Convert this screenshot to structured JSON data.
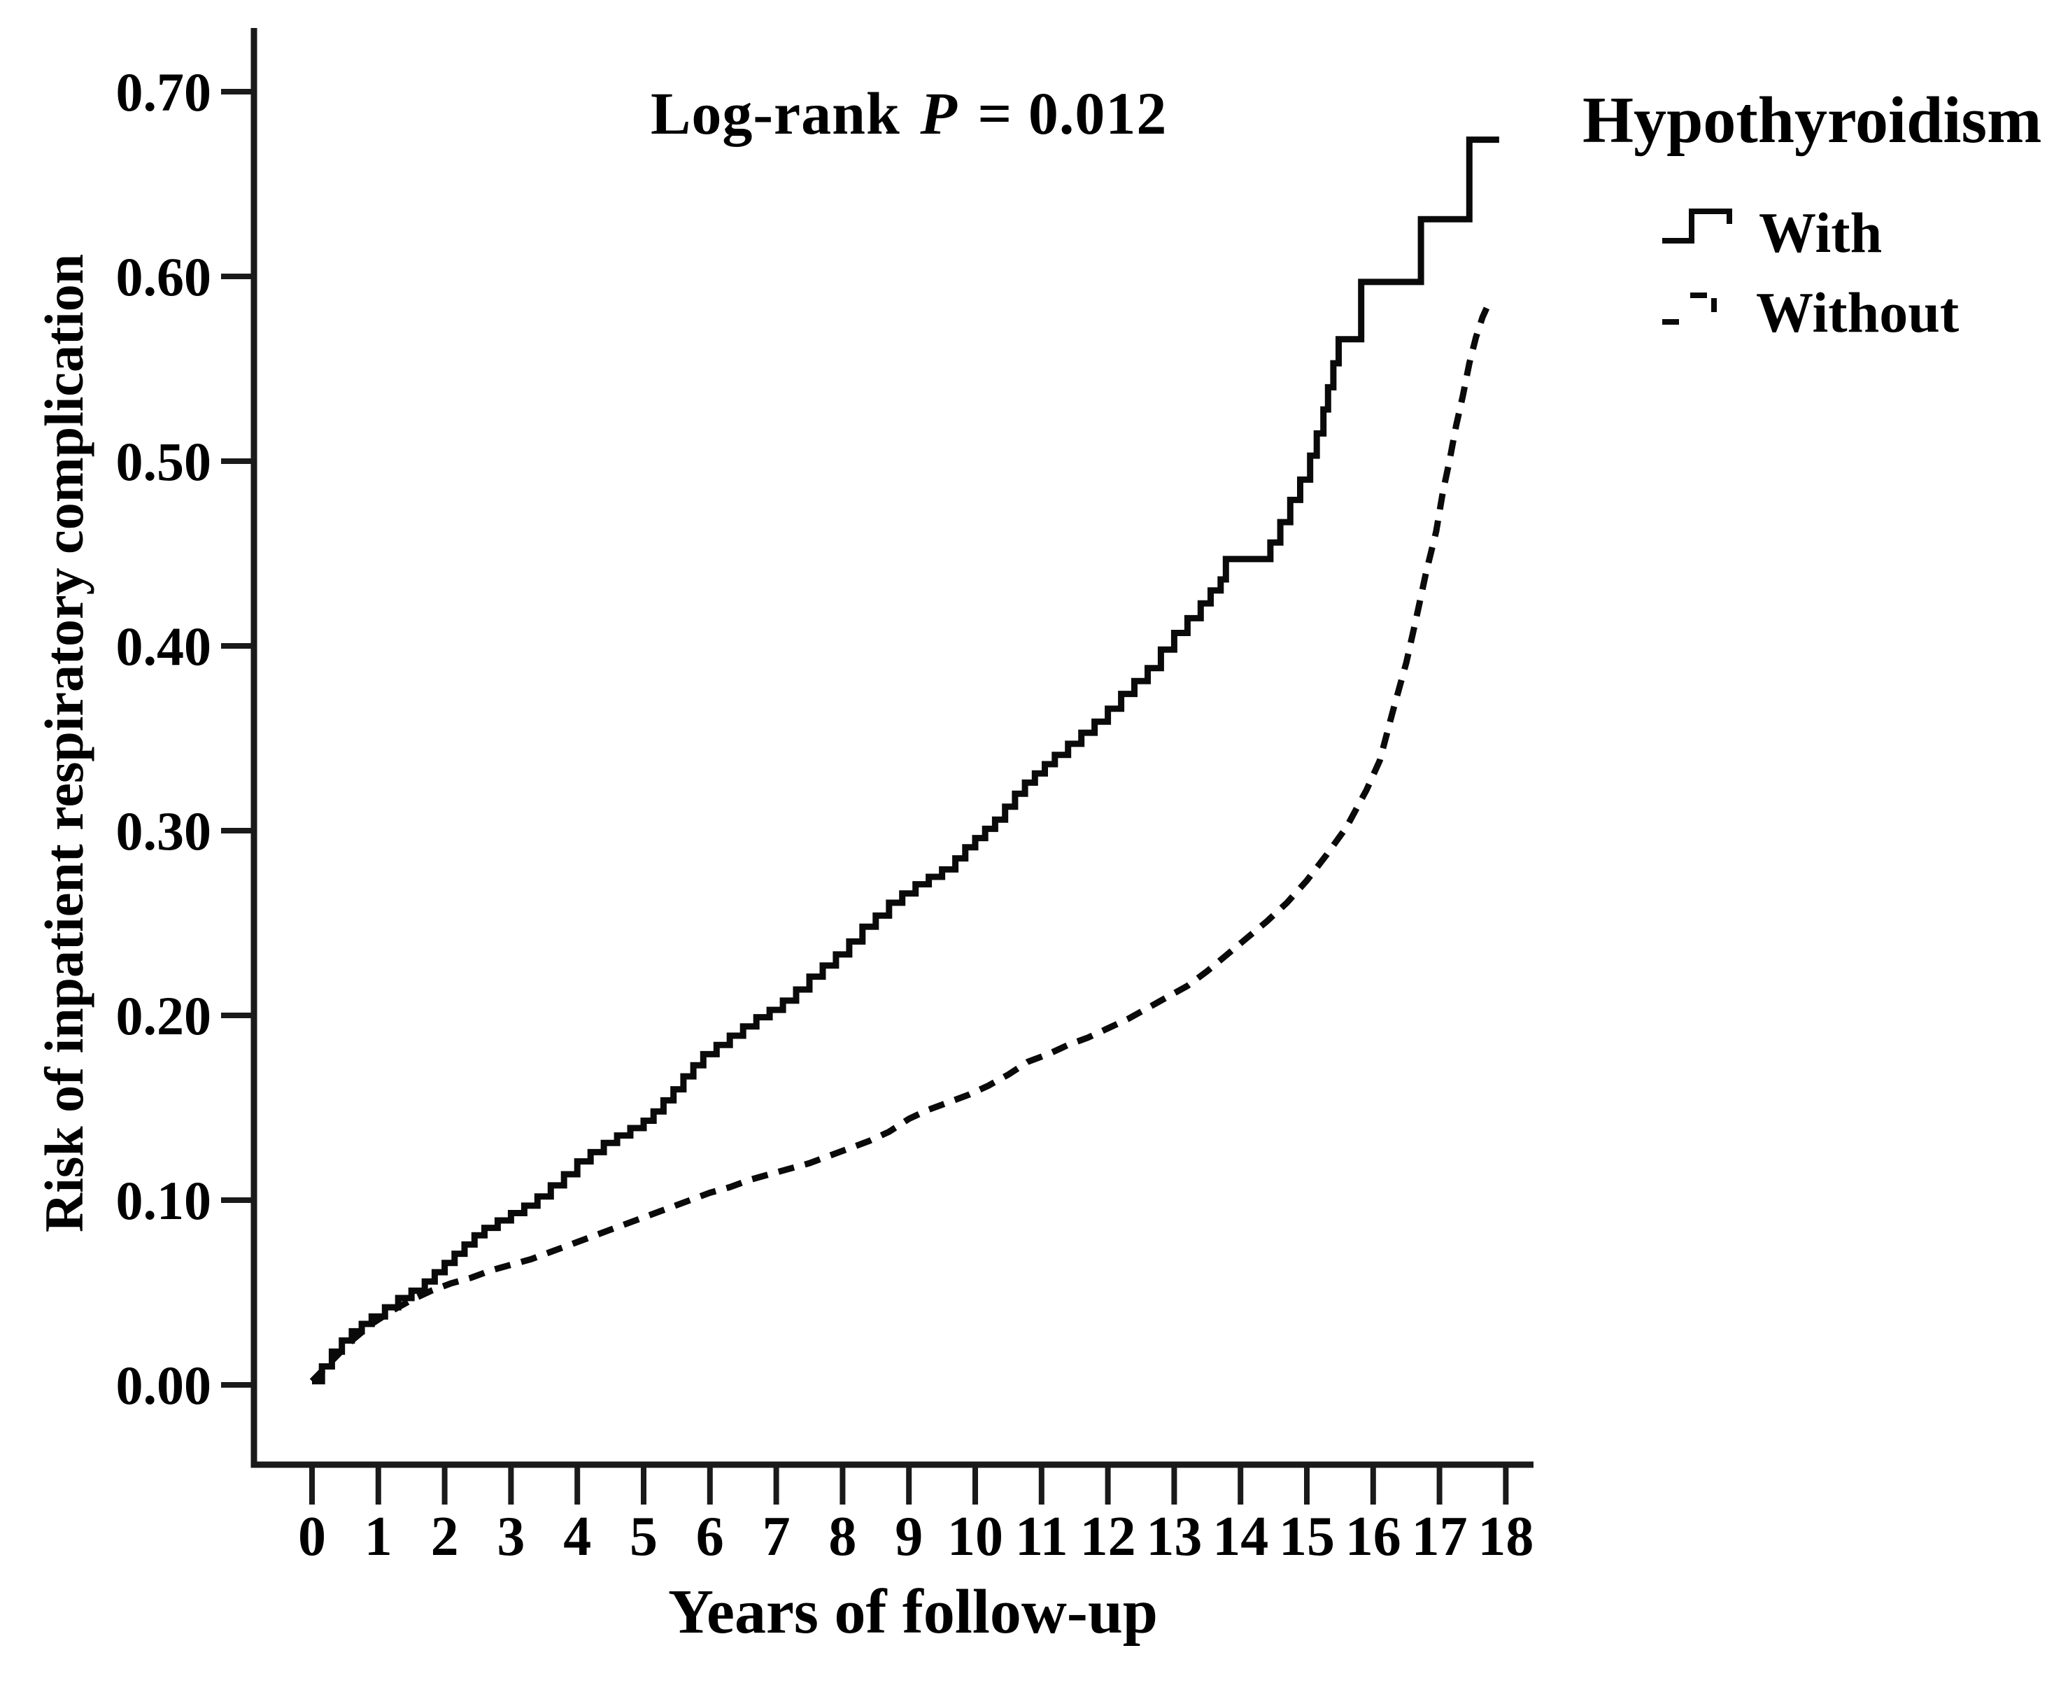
{
  "title": {
    "prefix": "Log-rank",
    "stat": "P",
    "suffix": "= 0.012"
  },
  "axes": {
    "x_label": "Years of follow-up",
    "y_label": "Risk of inpatient respiratory complication"
  },
  "legend": {
    "title": "Hypothyroidism",
    "items": [
      {
        "label": "With",
        "line": "solid"
      },
      {
        "label": "Without",
        "line": "dashed"
      }
    ],
    "position": "top-right-outside"
  },
  "colors": {
    "line": "#0a0a0a",
    "axis": "#1a1a1a",
    "text": "#000000",
    "background": "#ffffff"
  },
  "chart_data": {
    "type": "line",
    "subtype": "cumulative-incidence-kaplan-meier",
    "title": "Log-rank P = 0.012",
    "log_rank_p": 0.012,
    "xlabel": "Years of follow-up",
    "ylabel": "Risk of inpatient respiratory complication",
    "xlim": [
      0,
      18
    ],
    "ylim": [
      0.0,
      0.7
    ],
    "grid": false,
    "x_ticks": [
      0,
      1,
      2,
      3,
      4,
      5,
      6,
      7,
      8,
      9,
      10,
      11,
      12,
      13,
      14,
      15,
      16,
      17,
      18
    ],
    "y_ticks": [
      0.0,
      0.1,
      0.2,
      0.3,
      0.4,
      0.5,
      0.6,
      0.7
    ],
    "series": [
      {
        "name": "With",
        "line": "solid",
        "step": true,
        "points": [
          [
            0,
            0.002
          ],
          [
            0.15,
            0.01
          ],
          [
            0.3,
            0.018
          ],
          [
            0.45,
            0.024
          ],
          [
            0.6,
            0.029
          ],
          [
            0.75,
            0.033
          ],
          [
            0.9,
            0.037
          ],
          [
            1.1,
            0.042
          ],
          [
            1.3,
            0.047
          ],
          [
            1.5,
            0.051
          ],
          [
            1.7,
            0.056
          ],
          [
            1.85,
            0.061
          ],
          [
            2.0,
            0.066
          ],
          [
            2.15,
            0.071
          ],
          [
            2.3,
            0.076
          ],
          [
            2.45,
            0.081
          ],
          [
            2.6,
            0.085
          ],
          [
            2.8,
            0.089
          ],
          [
            3.0,
            0.093
          ],
          [
            3.2,
            0.097
          ],
          [
            3.4,
            0.102
          ],
          [
            3.6,
            0.108
          ],
          [
            3.8,
            0.114
          ],
          [
            4.0,
            0.121
          ],
          [
            4.2,
            0.126
          ],
          [
            4.4,
            0.131
          ],
          [
            4.6,
            0.135
          ],
          [
            4.8,
            0.139
          ],
          [
            5.0,
            0.143
          ],
          [
            5.15,
            0.148
          ],
          [
            5.3,
            0.154
          ],
          [
            5.45,
            0.16
          ],
          [
            5.6,
            0.167
          ],
          [
            5.75,
            0.173
          ],
          [
            5.9,
            0.179
          ],
          [
            6.1,
            0.184
          ],
          [
            6.3,
            0.189
          ],
          [
            6.5,
            0.194
          ],
          [
            6.7,
            0.199
          ],
          [
            6.9,
            0.203
          ],
          [
            7.1,
            0.208
          ],
          [
            7.3,
            0.214
          ],
          [
            7.5,
            0.221
          ],
          [
            7.7,
            0.227
          ],
          [
            7.9,
            0.233
          ],
          [
            8.1,
            0.24
          ],
          [
            8.3,
            0.248
          ],
          [
            8.5,
            0.254
          ],
          [
            8.7,
            0.261
          ],
          [
            8.9,
            0.266
          ],
          [
            9.1,
            0.271
          ],
          [
            9.3,
            0.275
          ],
          [
            9.5,
            0.279
          ],
          [
            9.7,
            0.285
          ],
          [
            9.85,
            0.291
          ],
          [
            10.0,
            0.296
          ],
          [
            10.15,
            0.301
          ],
          [
            10.3,
            0.306
          ],
          [
            10.45,
            0.313
          ],
          [
            10.6,
            0.32
          ],
          [
            10.75,
            0.326
          ],
          [
            10.9,
            0.331
          ],
          [
            11.05,
            0.336
          ],
          [
            11.2,
            0.341
          ],
          [
            11.4,
            0.347
          ],
          [
            11.6,
            0.353
          ],
          [
            11.8,
            0.359
          ],
          [
            12.0,
            0.366
          ],
          [
            12.2,
            0.374
          ],
          [
            12.4,
            0.381
          ],
          [
            12.6,
            0.388
          ],
          [
            12.8,
            0.398
          ],
          [
            13.0,
            0.407
          ],
          [
            13.2,
            0.415
          ],
          [
            13.4,
            0.423
          ],
          [
            13.55,
            0.43
          ],
          [
            13.7,
            0.436
          ],
          [
            13.78,
            0.447
          ],
          [
            14.35,
            0.447
          ],
          [
            14.45,
            0.456
          ],
          [
            14.6,
            0.467
          ],
          [
            14.75,
            0.479
          ],
          [
            14.9,
            0.49
          ],
          [
            15.05,
            0.503
          ],
          [
            15.15,
            0.515
          ],
          [
            15.25,
            0.528
          ],
          [
            15.32,
            0.54
          ],
          [
            15.4,
            0.553
          ],
          [
            15.48,
            0.566
          ],
          [
            15.82,
            0.597
          ],
          [
            16.72,
            0.631
          ],
          [
            17.45,
            0.674
          ],
          [
            17.9,
            0.674
          ]
        ]
      },
      {
        "name": "Without",
        "line": "dashed",
        "step": false,
        "points": [
          [
            0,
            0.002
          ],
          [
            0.3,
            0.013
          ],
          [
            0.6,
            0.024
          ],
          [
            0.9,
            0.033
          ],
          [
            1.2,
            0.04
          ],
          [
            1.5,
            0.046
          ],
          [
            1.8,
            0.051
          ],
          [
            2.1,
            0.055
          ],
          [
            2.4,
            0.058
          ],
          [
            2.7,
            0.062
          ],
          [
            3.0,
            0.065
          ],
          [
            3.3,
            0.068
          ],
          [
            3.6,
            0.072
          ],
          [
            3.9,
            0.076
          ],
          [
            4.2,
            0.08
          ],
          [
            4.5,
            0.084
          ],
          [
            4.8,
            0.088
          ],
          [
            5.1,
            0.092
          ],
          [
            5.4,
            0.096
          ],
          [
            5.7,
            0.1
          ],
          [
            6.0,
            0.104
          ],
          [
            6.3,
            0.107
          ],
          [
            6.6,
            0.111
          ],
          [
            6.9,
            0.114
          ],
          [
            7.2,
            0.117
          ],
          [
            7.5,
            0.12
          ],
          [
            7.8,
            0.124
          ],
          [
            8.1,
            0.128
          ],
          [
            8.4,
            0.132
          ],
          [
            8.7,
            0.137
          ],
          [
            9.0,
            0.144
          ],
          [
            9.3,
            0.149
          ],
          [
            9.6,
            0.153
          ],
          [
            9.9,
            0.157
          ],
          [
            10.2,
            0.162
          ],
          [
            10.5,
            0.168
          ],
          [
            10.8,
            0.175
          ],
          [
            11.1,
            0.179
          ],
          [
            11.4,
            0.184
          ],
          [
            11.7,
            0.188
          ],
          [
            12.0,
            0.193
          ],
          [
            12.3,
            0.198
          ],
          [
            12.6,
            0.204
          ],
          [
            12.9,
            0.21
          ],
          [
            13.2,
            0.216
          ],
          [
            13.5,
            0.224
          ],
          [
            13.8,
            0.233
          ],
          [
            14.1,
            0.242
          ],
          [
            14.4,
            0.251
          ],
          [
            14.7,
            0.261
          ],
          [
            15.0,
            0.273
          ],
          [
            15.3,
            0.287
          ],
          [
            15.6,
            0.302
          ],
          [
            15.9,
            0.322
          ],
          [
            16.1,
            0.338
          ],
          [
            16.3,
            0.365
          ],
          [
            16.5,
            0.391
          ],
          [
            16.65,
            0.415
          ],
          [
            16.8,
            0.44
          ],
          [
            16.95,
            0.462
          ],
          [
            17.05,
            0.483
          ],
          [
            17.15,
            0.5
          ],
          [
            17.25,
            0.519
          ],
          [
            17.35,
            0.535
          ],
          [
            17.45,
            0.553
          ],
          [
            17.55,
            0.567
          ],
          [
            17.65,
            0.578
          ],
          [
            17.75,
            0.586
          ]
        ]
      }
    ]
  }
}
